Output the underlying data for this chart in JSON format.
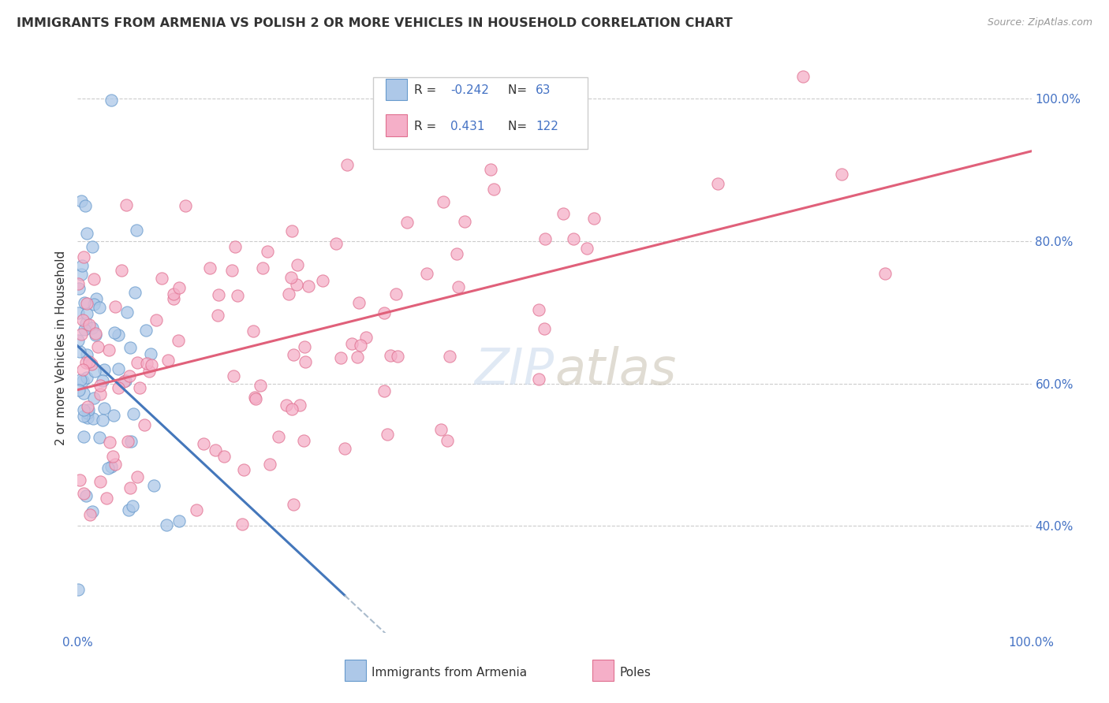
{
  "title": "IMMIGRANTS FROM ARMENIA VS POLISH 2 OR MORE VEHICLES IN HOUSEHOLD CORRELATION CHART",
  "source": "Source: ZipAtlas.com",
  "ylabel": "2 or more Vehicles in Household",
  "legend_label1": "Immigrants from Armenia",
  "legend_label2": "Poles",
  "R_armenia": -0.242,
  "N_armenia": 63,
  "R_poles": 0.431,
  "N_poles": 122,
  "color_armenia_fill": "#adc8e8",
  "color_armenia_edge": "#6699cc",
  "color_poles_fill": "#f5afc8",
  "color_poles_edge": "#e07090",
  "color_arm_line": "#4477bb",
  "color_pol_line": "#e0607a",
  "color_dashed": "#aabbcc",
  "background_color": "#ffffff",
  "watermark": "ZIPatlas",
  "xlim": [
    0,
    1.0
  ],
  "ylim": [
    0.25,
    1.05
  ],
  "x_ticks": [
    0.0,
    0.2,
    0.4,
    0.6,
    0.8,
    1.0
  ],
  "y_ticks": [
    0.4,
    0.6,
    0.8,
    1.0
  ],
  "tick_color": "#4472c4"
}
